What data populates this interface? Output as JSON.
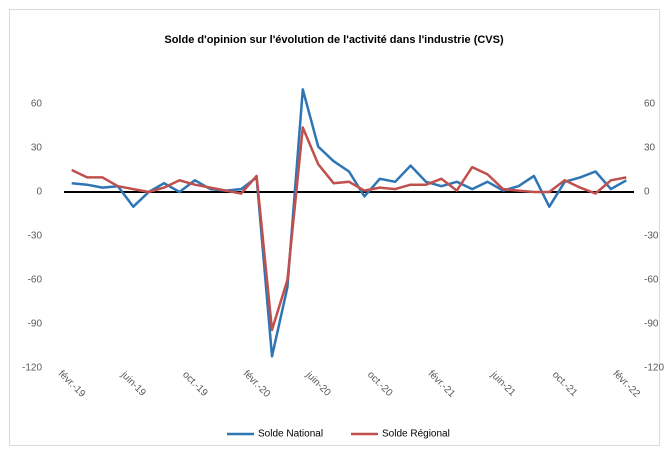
{
  "chart_data": {
    "type": "line",
    "title": "Solde d'opinion sur l'évolution de l'activité dans l'industrie (CVS)",
    "categories": [
      "févr.-19",
      null,
      null,
      null,
      "juin-19",
      null,
      null,
      null,
      "oct.-19",
      null,
      null,
      null,
      "févr.-20",
      null,
      null,
      null,
      "juin-20",
      null,
      null,
      null,
      "oct.-20",
      null,
      null,
      null,
      "févr.-21",
      null,
      null,
      null,
      "juin-21",
      null,
      null,
      null,
      "oct.-21",
      null,
      null,
      null,
      "févr.-22"
    ],
    "series": [
      {
        "name": "Solde National",
        "color": "#2e75b6",
        "values": [
          6,
          5,
          3,
          4,
          -10,
          0,
          6,
          0,
          8,
          2,
          1,
          2,
          10,
          -112,
          -65,
          70,
          31,
          21,
          14,
          -3,
          9,
          7,
          18,
          7,
          4,
          7,
          2,
          7,
          1,
          4,
          11,
          -10,
          7,
          10,
          14,
          2,
          8
        ]
      },
      {
        "name": "Solde Régional",
        "color": "#c0504d",
        "values": [
          15,
          10,
          10,
          4,
          2,
          0,
          3,
          8,
          5,
          3,
          1,
          -1,
          11,
          -94,
          -60,
          44,
          19,
          6,
          7,
          1,
          3,
          2,
          5,
          5,
          9,
          1,
          17,
          12,
          2,
          1,
          0,
          0,
          8,
          3,
          -1,
          8,
          10
        ]
      }
    ],
    "ylim": [
      -120,
      80
    ],
    "yticks": [
      -120,
      -90,
      -60,
      -30,
      0,
      30,
      60
    ],
    "y2lim": [
      -120,
      80
    ],
    "y2ticks": [
      -120,
      -90,
      -60,
      -30,
      0,
      30,
      60
    ],
    "grid": false,
    "legend": "bottom"
  }
}
